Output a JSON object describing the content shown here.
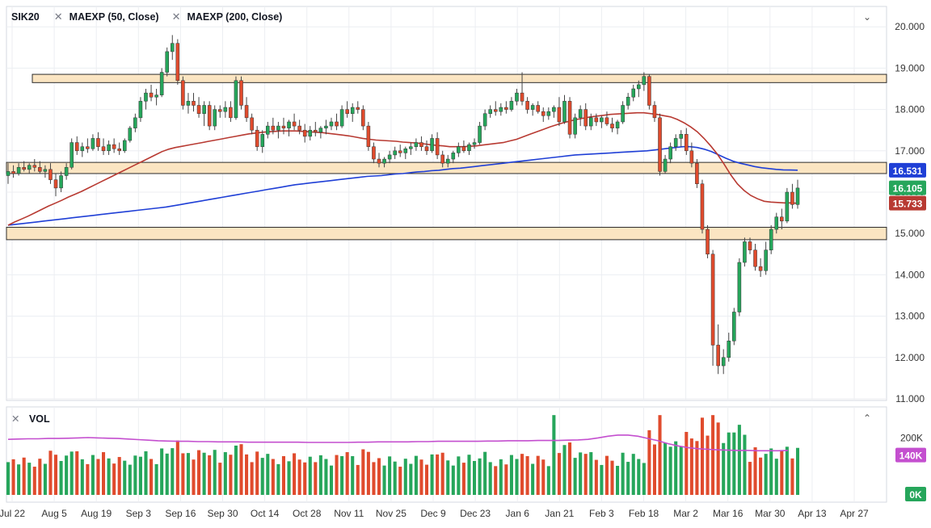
{
  "legend": {
    "symbol": "SIK20",
    "indicator1": "MAEXP (50, Close)",
    "indicator2": "MAEXP (200, Close)",
    "close_icon": "close-icon"
  },
  "volume_legend": {
    "label": "VOL"
  },
  "controls": {
    "collapse_main": "⌄",
    "collapse_volume": "⌃"
  },
  "colors": {
    "up": "#26a65b",
    "down": "#e04b2d",
    "ma50": "#b83a32",
    "ma200": "#1f3fd6",
    "vol_ma": "#c44fcf",
    "zone_fill": "#fbe5c2",
    "zone_stroke": "#2b2b2b",
    "price_axis_ma200": "#1f3fd6",
    "price_axis_last": "#26a65b",
    "price_axis_ma50": "#b83a32",
    "vol_axis_ma": "#c44fcf",
    "vol_axis_zero": "#26a65b"
  },
  "chart_data": {
    "type": "candlestick",
    "title": "SIK20",
    "y_ticks": [
      "20.000",
      "19.000",
      "18.000",
      "17.000",
      "16.000",
      "15.000",
      "14.000",
      "13.000",
      "12.000",
      "11.000"
    ],
    "ylim": [
      11.0,
      20.0
    ],
    "x_ticks": [
      "Jul 22",
      "Aug 5",
      "Aug 19",
      "Sep 3",
      "Sep 16",
      "Sep 30",
      "Oct 14",
      "Oct 28",
      "Nov 11",
      "Nov 25",
      "Dec 9",
      "Dec 23",
      "Jan 6",
      "Jan 21",
      "Feb 3",
      "Feb 18",
      "Mar 2",
      "Mar 16",
      "Mar 30",
      "Apr 13",
      "Apr 27"
    ],
    "price_labels": {
      "ma200": "16.531",
      "last": "16.105",
      "ma50": "15.733"
    },
    "zones": [
      {
        "low": 18.65,
        "high": 18.85,
        "start": "Jul 22",
        "end": "Apr 27"
      },
      {
        "low": 16.45,
        "high": 16.72,
        "start": "Jul 22",
        "end": "Apr 27"
      },
      {
        "low": 14.85,
        "high": 15.15,
        "start": "Jul 22",
        "end": "Apr 27"
      }
    ],
    "candles_ohlc": [
      [
        16.4,
        16.7,
        16.2,
        16.5
      ],
      [
        16.5,
        16.65,
        16.35,
        16.45
      ],
      [
        16.45,
        16.7,
        16.4,
        16.6
      ],
      [
        16.6,
        16.75,
        16.5,
        16.55
      ],
      [
        16.55,
        16.7,
        16.45,
        16.65
      ],
      [
        16.65,
        16.8,
        16.5,
        16.6
      ],
      [
        16.6,
        16.75,
        16.45,
        16.5
      ],
      [
        16.5,
        16.65,
        16.35,
        16.55
      ],
      [
        16.55,
        16.7,
        16.2,
        16.3
      ],
      [
        16.3,
        16.45,
        15.9,
        16.1
      ],
      [
        16.1,
        16.5,
        16.0,
        16.4
      ],
      [
        16.4,
        16.7,
        16.3,
        16.6
      ],
      [
        16.6,
        17.3,
        16.55,
        17.2
      ],
      [
        17.2,
        17.35,
        16.9,
        17.0
      ],
      [
        17.0,
        17.2,
        16.85,
        17.1
      ],
      [
        17.1,
        17.3,
        16.95,
        17.05
      ],
      [
        17.05,
        17.4,
        17.0,
        17.3
      ],
      [
        17.3,
        17.45,
        17.0,
        17.1
      ],
      [
        17.1,
        17.3,
        16.9,
        17.0
      ],
      [
        17.0,
        17.25,
        16.9,
        17.15
      ],
      [
        17.15,
        17.3,
        16.95,
        17.05
      ],
      [
        17.05,
        17.2,
        16.9,
        17.0
      ],
      [
        17.0,
        17.3,
        16.95,
        17.25
      ],
      [
        17.25,
        17.6,
        17.2,
        17.55
      ],
      [
        17.55,
        17.9,
        17.45,
        17.8
      ],
      [
        17.8,
        18.3,
        17.7,
        18.2
      ],
      [
        18.2,
        18.5,
        18.0,
        18.4
      ],
      [
        18.4,
        18.6,
        18.2,
        18.3
      ],
      [
        18.3,
        18.5,
        18.1,
        18.35
      ],
      [
        18.35,
        19.0,
        18.3,
        18.9
      ],
      [
        18.9,
        19.5,
        18.8,
        19.4
      ],
      [
        19.4,
        19.8,
        19.2,
        19.6
      ],
      [
        19.6,
        19.7,
        18.6,
        18.7
      ],
      [
        18.7,
        18.8,
        18.0,
        18.1
      ],
      [
        18.1,
        18.4,
        17.9,
        18.2
      ],
      [
        18.2,
        18.4,
        17.95,
        18.1
      ],
      [
        18.1,
        18.3,
        17.8,
        17.9
      ],
      [
        17.9,
        18.2,
        17.6,
        18.1
      ],
      [
        18.1,
        18.2,
        17.5,
        17.6
      ],
      [
        17.6,
        18.1,
        17.5,
        18.0
      ],
      [
        18.0,
        18.1,
        17.8,
        17.95
      ],
      [
        17.95,
        18.2,
        17.8,
        18.05
      ],
      [
        18.05,
        18.2,
        17.7,
        17.8
      ],
      [
        17.8,
        18.8,
        17.75,
        18.7
      ],
      [
        18.7,
        18.8,
        18.0,
        18.1
      ],
      [
        18.1,
        18.3,
        17.7,
        17.8
      ],
      [
        17.8,
        17.9,
        17.4,
        17.5
      ],
      [
        17.5,
        17.6,
        17.0,
        17.1
      ],
      [
        17.1,
        17.5,
        16.95,
        17.4
      ],
      [
        17.4,
        17.7,
        17.3,
        17.6
      ],
      [
        17.6,
        17.8,
        17.4,
        17.5
      ],
      [
        17.5,
        17.7,
        17.3,
        17.6
      ],
      [
        17.6,
        17.8,
        17.4,
        17.55
      ],
      [
        17.55,
        17.75,
        17.35,
        17.7
      ],
      [
        17.7,
        17.9,
        17.5,
        17.6
      ],
      [
        17.6,
        17.75,
        17.4,
        17.5
      ],
      [
        17.5,
        17.65,
        17.2,
        17.35
      ],
      [
        17.35,
        17.6,
        17.25,
        17.5
      ],
      [
        17.5,
        17.7,
        17.35,
        17.45
      ],
      [
        17.45,
        17.6,
        17.3,
        17.55
      ],
      [
        17.55,
        17.75,
        17.4,
        17.6
      ],
      [
        17.6,
        17.8,
        17.5,
        17.7
      ],
      [
        17.7,
        17.9,
        17.5,
        17.6
      ],
      [
        17.6,
        18.1,
        17.55,
        18.0
      ],
      [
        18.0,
        18.2,
        17.8,
        17.9
      ],
      [
        17.9,
        18.15,
        17.7,
        18.05
      ],
      [
        18.05,
        18.2,
        17.9,
        18.0
      ],
      [
        18.0,
        18.1,
        17.5,
        17.6
      ],
      [
        17.6,
        17.7,
        17.0,
        17.1
      ],
      [
        17.1,
        17.2,
        16.7,
        16.8
      ],
      [
        16.8,
        16.95,
        16.6,
        16.7
      ],
      [
        16.7,
        16.85,
        16.6,
        16.8
      ],
      [
        16.8,
        17.0,
        16.7,
        16.9
      ],
      [
        16.9,
        17.1,
        16.8,
        17.0
      ],
      [
        17.0,
        17.15,
        16.85,
        16.95
      ],
      [
        16.95,
        17.1,
        16.8,
        17.05
      ],
      [
        17.05,
        17.2,
        16.9,
        17.1
      ],
      [
        17.1,
        17.3,
        17.0,
        17.2
      ],
      [
        17.2,
        17.35,
        17.0,
        17.1
      ],
      [
        17.1,
        17.25,
        16.9,
        17.0
      ],
      [
        17.0,
        17.4,
        16.95,
        17.3
      ],
      [
        17.3,
        17.45,
        16.8,
        16.9
      ],
      [
        16.9,
        17.0,
        16.6,
        16.7
      ],
      [
        16.7,
        16.9,
        16.6,
        16.8
      ],
      [
        16.8,
        17.0,
        16.7,
        16.95
      ],
      [
        16.95,
        17.2,
        16.85,
        17.1
      ],
      [
        17.1,
        17.25,
        16.95,
        17.0
      ],
      [
        17.0,
        17.2,
        16.9,
        17.15
      ],
      [
        17.15,
        17.3,
        17.05,
        17.2
      ],
      [
        17.2,
        17.7,
        17.15,
        17.6
      ],
      [
        17.6,
        18.0,
        17.5,
        17.9
      ],
      [
        17.9,
        18.1,
        17.8,
        18.0
      ],
      [
        18.0,
        18.2,
        17.85,
        17.95
      ],
      [
        17.95,
        18.15,
        17.85,
        18.05
      ],
      [
        18.05,
        18.2,
        17.9,
        18.0
      ],
      [
        18.0,
        18.3,
        17.95,
        18.2
      ],
      [
        18.2,
        18.5,
        18.1,
        18.4
      ],
      [
        18.4,
        18.9,
        18.1,
        18.2
      ],
      [
        18.2,
        18.3,
        17.9,
        18.0
      ],
      [
        18.0,
        18.15,
        17.85,
        18.1
      ],
      [
        18.1,
        18.2,
        17.9,
        17.95
      ],
      [
        17.95,
        18.05,
        17.7,
        17.85
      ],
      [
        17.85,
        18.05,
        17.75,
        17.95
      ],
      [
        17.95,
        18.1,
        17.8,
        18.05
      ],
      [
        18.05,
        18.3,
        17.6,
        17.7
      ],
      [
        17.7,
        18.35,
        17.65,
        18.2
      ],
      [
        18.2,
        18.3,
        17.3,
        17.4
      ],
      [
        17.4,
        17.9,
        17.3,
        17.8
      ],
      [
        17.8,
        18.1,
        17.6,
        18.0
      ],
      [
        18.0,
        18.15,
        17.5,
        17.6
      ],
      [
        17.6,
        17.9,
        17.5,
        17.8
      ],
      [
        17.8,
        17.9,
        17.6,
        17.7
      ],
      [
        17.7,
        17.85,
        17.55,
        17.8
      ],
      [
        17.8,
        17.95,
        17.6,
        17.65
      ],
      [
        17.65,
        17.8,
        17.45,
        17.55
      ],
      [
        17.55,
        17.75,
        17.4,
        17.7
      ],
      [
        17.7,
        18.2,
        17.65,
        18.1
      ],
      [
        18.1,
        18.4,
        18.0,
        18.3
      ],
      [
        18.3,
        18.6,
        18.2,
        18.5
      ],
      [
        18.5,
        18.7,
        18.3,
        18.6
      ],
      [
        18.6,
        18.9,
        18.45,
        18.8
      ],
      [
        18.8,
        18.85,
        18.0,
        18.1
      ],
      [
        18.1,
        18.2,
        17.7,
        17.8
      ],
      [
        17.8,
        17.9,
        16.4,
        16.5
      ],
      [
        16.5,
        16.9,
        16.45,
        16.8
      ],
      [
        16.8,
        17.2,
        16.7,
        17.1
      ],
      [
        17.1,
        17.4,
        17.0,
        17.3
      ],
      [
        17.3,
        17.5,
        17.1,
        17.4
      ],
      [
        17.4,
        17.55,
        16.9,
        17.0
      ],
      [
        17.0,
        17.2,
        16.6,
        16.7
      ],
      [
        16.7,
        16.8,
        16.1,
        16.2
      ],
      [
        16.2,
        16.3,
        15.0,
        15.1
      ],
      [
        15.1,
        15.2,
        14.4,
        14.5
      ],
      [
        14.5,
        14.6,
        11.8,
        12.3
      ],
      [
        12.3,
        12.8,
        11.6,
        11.8
      ],
      [
        11.8,
        12.2,
        11.6,
        12.0
      ],
      [
        12.0,
        12.6,
        11.9,
        12.4
      ],
      [
        12.4,
        13.2,
        12.3,
        13.1
      ],
      [
        13.1,
        14.4,
        13.0,
        14.3
      ],
      [
        14.3,
        14.9,
        14.2,
        14.8
      ],
      [
        14.8,
        14.9,
        14.5,
        14.6
      ],
      [
        14.6,
        14.75,
        14.1,
        14.2
      ],
      [
        14.2,
        14.4,
        13.95,
        14.1
      ],
      [
        14.1,
        14.8,
        14.0,
        14.6
      ],
      [
        14.6,
        15.2,
        14.5,
        15.1
      ],
      [
        15.1,
        15.5,
        15.0,
        15.4
      ],
      [
        15.4,
        15.6,
        15.1,
        15.3
      ],
      [
        15.3,
        16.1,
        15.25,
        16.0
      ],
      [
        16.0,
        16.2,
        15.6,
        15.7
      ],
      [
        15.7,
        16.3,
        15.6,
        16.1
      ]
    ],
    "ma50": [
      15.2,
      15.28,
      15.35,
      15.42,
      15.5,
      15.58,
      15.66,
      15.73,
      15.8,
      15.88,
      15.95,
      16.02,
      16.1,
      16.18,
      16.26,
      16.34,
      16.42,
      16.5,
      16.58,
      16.66,
      16.74,
      16.82,
      16.9,
      16.98,
      17.04,
      17.08,
      17.11,
      17.14,
      17.17,
      17.2,
      17.23,
      17.26,
      17.29,
      17.32,
      17.35,
      17.38,
      17.41,
      17.43,
      17.45,
      17.46,
      17.47,
      17.48,
      17.48,
      17.48,
      17.47,
      17.46,
      17.45,
      17.44,
      17.42,
      17.4,
      17.38,
      17.36,
      17.33,
      17.3,
      17.28,
      17.26,
      17.25,
      17.24,
      17.23,
      17.21,
      17.2,
      17.19,
      17.17,
      17.15,
      17.13,
      17.12,
      17.1,
      17.1,
      17.1,
      17.11,
      17.12,
      17.14,
      17.16,
      17.18,
      17.2,
      17.24,
      17.28,
      17.34,
      17.4,
      17.46,
      17.52,
      17.58,
      17.63,
      17.68,
      17.72,
      17.76,
      17.79,
      17.82,
      17.84,
      17.86,
      17.88,
      17.89,
      17.9,
      17.91,
      17.92,
      17.92,
      17.9,
      17.88,
      17.85,
      17.82,
      17.76,
      17.68,
      17.58,
      17.46,
      17.3,
      17.12,
      16.92,
      16.68,
      16.42,
      16.2,
      16.04,
      15.92,
      15.84,
      15.78,
      15.76,
      15.75,
      15.74,
      15.74,
      15.73
    ],
    "ma200": [
      15.2,
      15.22,
      15.24,
      15.26,
      15.28,
      15.3,
      15.32,
      15.34,
      15.36,
      15.38,
      15.4,
      15.42,
      15.44,
      15.46,
      15.48,
      15.5,
      15.52,
      15.54,
      15.56,
      15.58,
      15.6,
      15.62,
      15.64,
      15.67,
      15.7,
      15.73,
      15.76,
      15.79,
      15.82,
      15.85,
      15.88,
      15.91,
      15.94,
      15.97,
      16.0,
      16.03,
      16.06,
      16.09,
      16.12,
      16.15,
      16.18,
      16.2,
      16.22,
      16.24,
      16.26,
      16.28,
      16.3,
      16.32,
      16.34,
      16.36,
      16.38,
      16.39,
      16.4,
      16.42,
      16.44,
      16.45,
      16.47,
      16.49,
      16.5,
      16.52,
      16.53,
      16.55,
      16.57,
      16.58,
      16.6,
      16.62,
      16.64,
      16.66,
      16.68,
      16.7,
      16.72,
      16.74,
      16.76,
      16.78,
      16.8,
      16.82,
      16.84,
      16.86,
      16.88,
      16.9,
      16.91,
      16.92,
      16.93,
      16.94,
      16.95,
      16.96,
      16.97,
      16.98,
      16.99,
      17.0,
      17.02,
      17.04,
      17.06,
      17.08,
      17.1,
      17.1,
      17.08,
      17.04,
      16.98,
      16.9,
      16.82,
      16.75,
      16.7,
      16.66,
      16.62,
      16.59,
      16.57,
      16.55,
      16.54,
      16.535,
      16.531
    ],
    "volume": {
      "y_ticks": [
        "200K"
      ],
      "labels": {
        "ma": "140K",
        "zero": "0K"
      },
      "ylim": [
        0,
        280
      ],
      "vol_ma": [
        195,
        196,
        197,
        197,
        198,
        198,
        199,
        200,
        201,
        200,
        199,
        198,
        196,
        194,
        192,
        190,
        189,
        188,
        188,
        187,
        187,
        186,
        186,
        186,
        185,
        185,
        185,
        185,
        185,
        185,
        184,
        184,
        184,
        184,
        184,
        185,
        185,
        186,
        186,
        186,
        186,
        187,
        187,
        188,
        188,
        188,
        188,
        188,
        189,
        189,
        190,
        190,
        190,
        191,
        191,
        191,
        192,
        193,
        195,
        200,
        206,
        210,
        210,
        206,
        198,
        190,
        180,
        172,
        166,
        162,
        160,
        158,
        157,
        156,
        156,
        155,
        155,
        155,
        156
      ]
    }
  }
}
